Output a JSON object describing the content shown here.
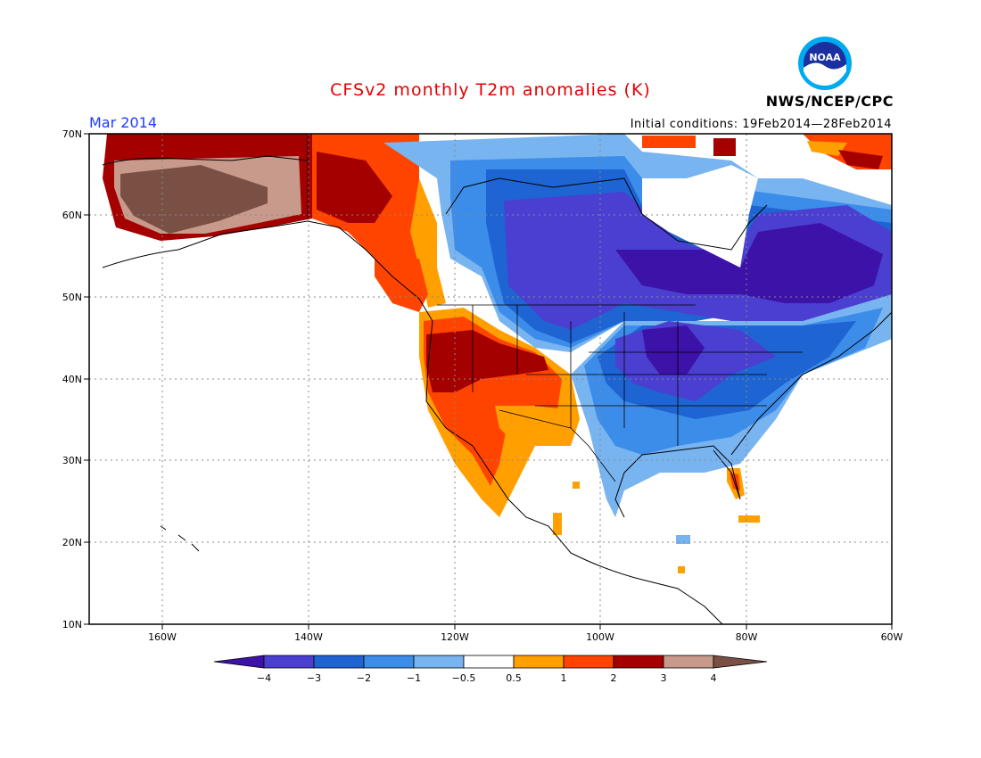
{
  "header": {
    "title": "CFSv2 monthly T2m anomalies (K)",
    "month": "Mar 2014",
    "initial_conditions": "Initial conditions: 19Feb2014—28Feb2014",
    "agency": "NWS/NCEP/CPC",
    "logo_text": "NOAA"
  },
  "axes": {
    "lon_labels": [
      "160W",
      "140W",
      "120W",
      "100W",
      "80W",
      "60W"
    ],
    "lat_labels": [
      "70N",
      "60N",
      "50N",
      "40N",
      "30N",
      "20N",
      "10N"
    ]
  },
  "colorbar": {
    "levels": [
      "−4",
      "−3",
      "−2",
      "−1",
      "−0.5",
      "0.5",
      "1",
      "2",
      "3",
      "4"
    ],
    "colors": [
      "#3c12a8",
      "#4a3fd0",
      "#1e64d2",
      "#3c8cea",
      "#78b4f0",
      "#ffffff",
      "#ffa000",
      "#ff4400",
      "#a50000",
      "#c89a8c",
      "#7a5044"
    ]
  }
}
